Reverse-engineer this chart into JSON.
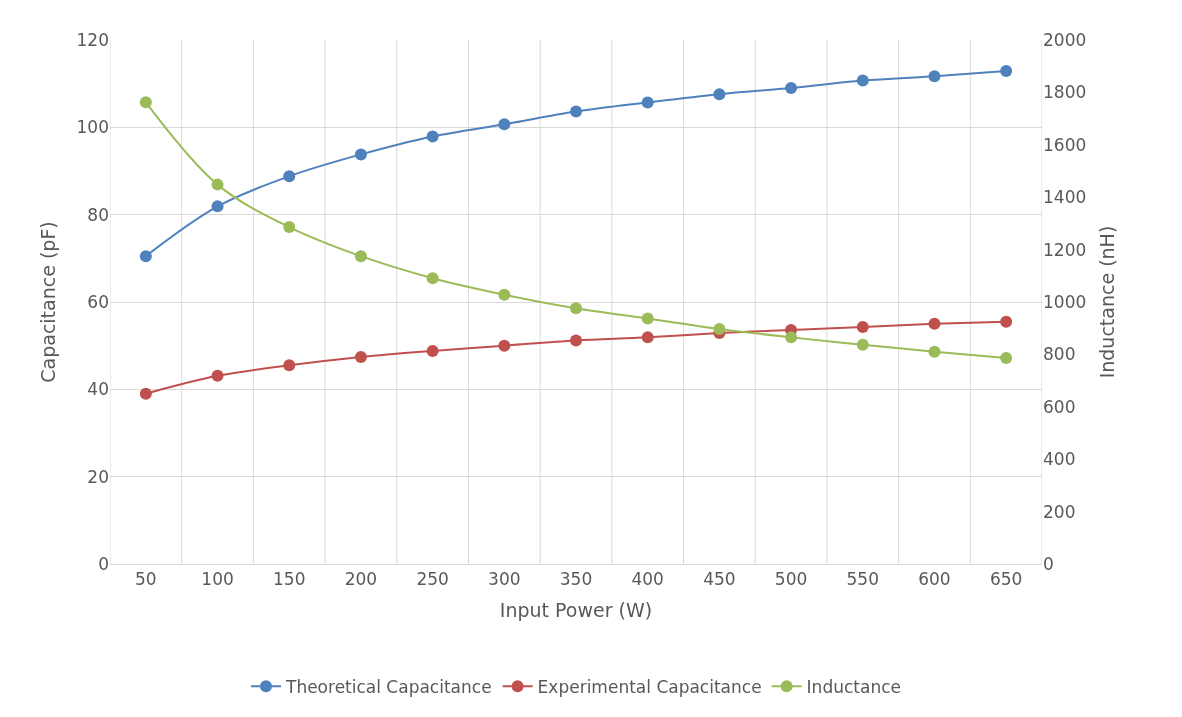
{
  "chart_data": {
    "type": "line",
    "xlabel": "Input Power (W)",
    "ylabel": "Capacitance (pF)",
    "y2label": "Inductance (nH)",
    "categories": [
      "50",
      "100",
      "150",
      "200",
      "250",
      "300",
      "350",
      "400",
      "450",
      "500",
      "550",
      "600",
      "650"
    ],
    "series": [
      {
        "name": "Theoretical Capacitance",
        "color": "#4f81bd",
        "values": [
          70.5,
          81.9,
          88.8,
          93.8,
          97.9,
          100.7,
          103.6,
          105.7,
          107.6,
          109.0,
          110.7,
          111.7,
          112.9
        ]
      },
      {
        "name": "Experimental Capacitance",
        "color": "#c0504d",
        "values": [
          39.0,
          43.1,
          45.5,
          47.4,
          48.8,
          50.0,
          51.2,
          51.9,
          52.9,
          53.6,
          54.3,
          55.0,
          55.5
        ]
      },
      {
        "name": "Inductance",
        "color": "#9bbb59",
        "axis": "y2",
        "values": [
          1762,
          1448,
          1286,
          1175,
          1091,
          1028,
          976,
          937,
          897,
          865,
          837,
          810,
          786
        ]
      }
    ],
    "ylim": [
      0,
      120
    ],
    "yticks": [
      0,
      20,
      40,
      60,
      80,
      100,
      120
    ],
    "y2lim": [
      0,
      2000
    ],
    "y2ticks": [
      0,
      200,
      400,
      600,
      800,
      1000,
      1200,
      1400,
      1600,
      1800,
      2000
    ],
    "grid": true,
    "legend": "bottom",
    "marker": "circle",
    "line_style": "solid"
  }
}
